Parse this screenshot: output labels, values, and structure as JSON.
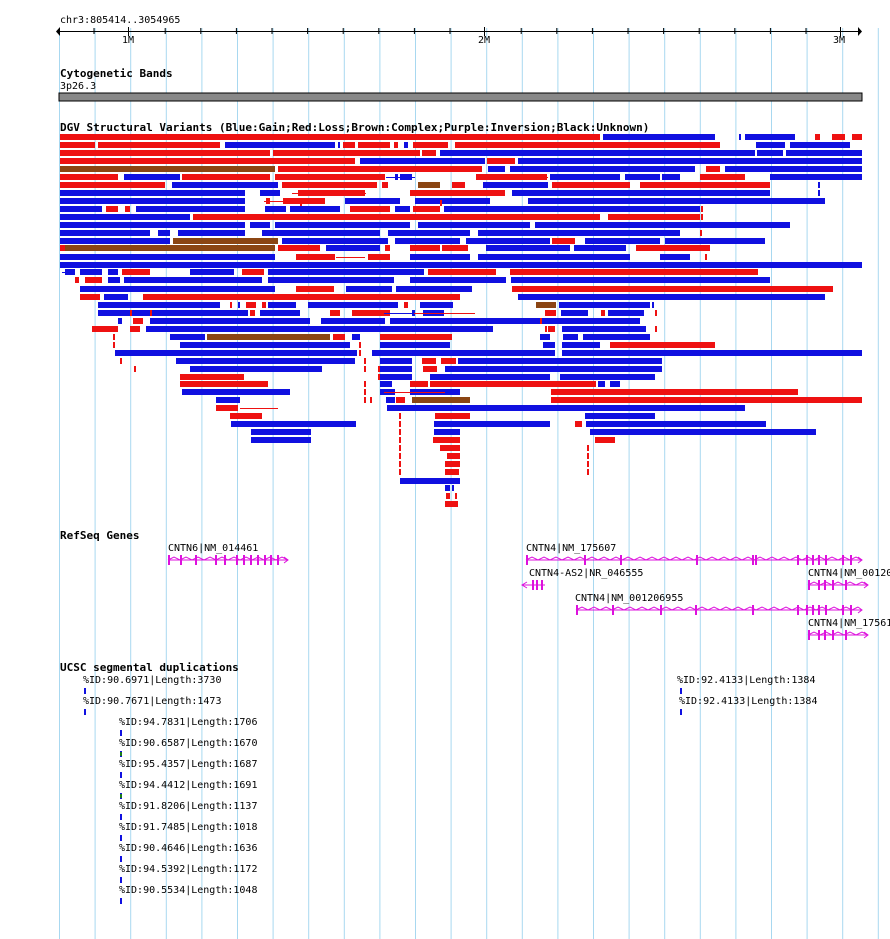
{
  "ruler": {
    "location": "chr3:805414..3054965",
    "ticks": [
      "1M",
      "2M",
      "3M"
    ]
  },
  "cytoband": {
    "title": "Cytogenetic Bands",
    "band": "3p26.3"
  },
  "dgv": {
    "title": "DGV Structural Variants (Blue:Gain;Red:Loss;Brown:Complex;Purple:Inversion;Black:Unknown)",
    "colors": {
      "gain": "#1010e0",
      "loss": "#ee1111",
      "complex": "#8b4513"
    }
  },
  "refseq": {
    "title": "RefSeq Genes",
    "color": "#dd11dd",
    "genes": [
      {
        "label": "CNTN6|NM_014461"
      },
      {
        "label": "CNTN4|NM_175607"
      },
      {
        "label": "CNTN4-AS2|NR_046555"
      },
      {
        "label": "CNTN4|NM_00120"
      },
      {
        "label": "CNTN4|NM_001206955"
      },
      {
        "label": "CNTN4|NM_17561"
      }
    ]
  },
  "segdups": {
    "title": "UCSC segmental duplications",
    "items": [
      {
        "label": "%ID:90.6971|Length:3730"
      },
      {
        "label": "%ID:90.7671|Length:1473"
      },
      {
        "label": "%ID:94.7831|Length:1706"
      },
      {
        "label": "%ID:90.6587|Length:1670"
      },
      {
        "label": "%ID:95.4357|Length:1687"
      },
      {
        "label": "%ID:94.4412|Length:1691"
      },
      {
        "label": "%ID:91.8206|Length:1137"
      },
      {
        "label": "%ID:91.7485|Length:1018"
      },
      {
        "label": "%ID:90.4646|Length:1636"
      },
      {
        "label": "%ID:94.5392|Length:1172"
      },
      {
        "label": "%ID:90.5534|Length:1048"
      },
      {
        "label": "%ID:92.4133|Length:1384"
      },
      {
        "label": "%ID:92.4133|Length:1384"
      }
    ]
  }
}
